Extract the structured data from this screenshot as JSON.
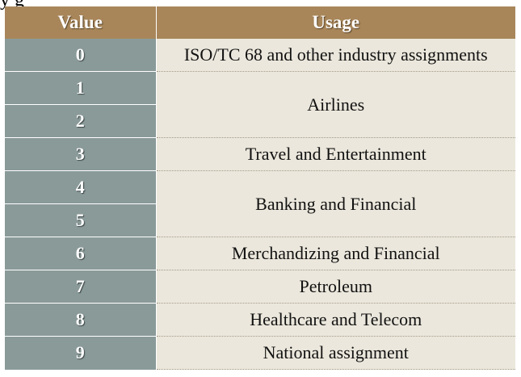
{
  "page_fragment": "y   g",
  "table": {
    "headers": [
      "Value",
      "Usage"
    ],
    "rows": [
      {
        "value": "0",
        "usage": "ISO/TC 68 and other industry assignments"
      },
      {
        "value": "1",
        "usage": "Airlines"
      },
      {
        "value": "2",
        "usage": ""
      },
      {
        "value": "3",
        "usage": "Travel and Entertainment"
      },
      {
        "value": "4",
        "usage": "Banking and Financial"
      },
      {
        "value": "5",
        "usage": ""
      },
      {
        "value": "6",
        "usage": "Merchandizing and Financial"
      },
      {
        "value": "7",
        "usage": "Petroleum"
      },
      {
        "value": "8",
        "usage": "Healthcare and Telecom"
      },
      {
        "value": "9",
        "usage": "National assignment"
      }
    ]
  }
}
